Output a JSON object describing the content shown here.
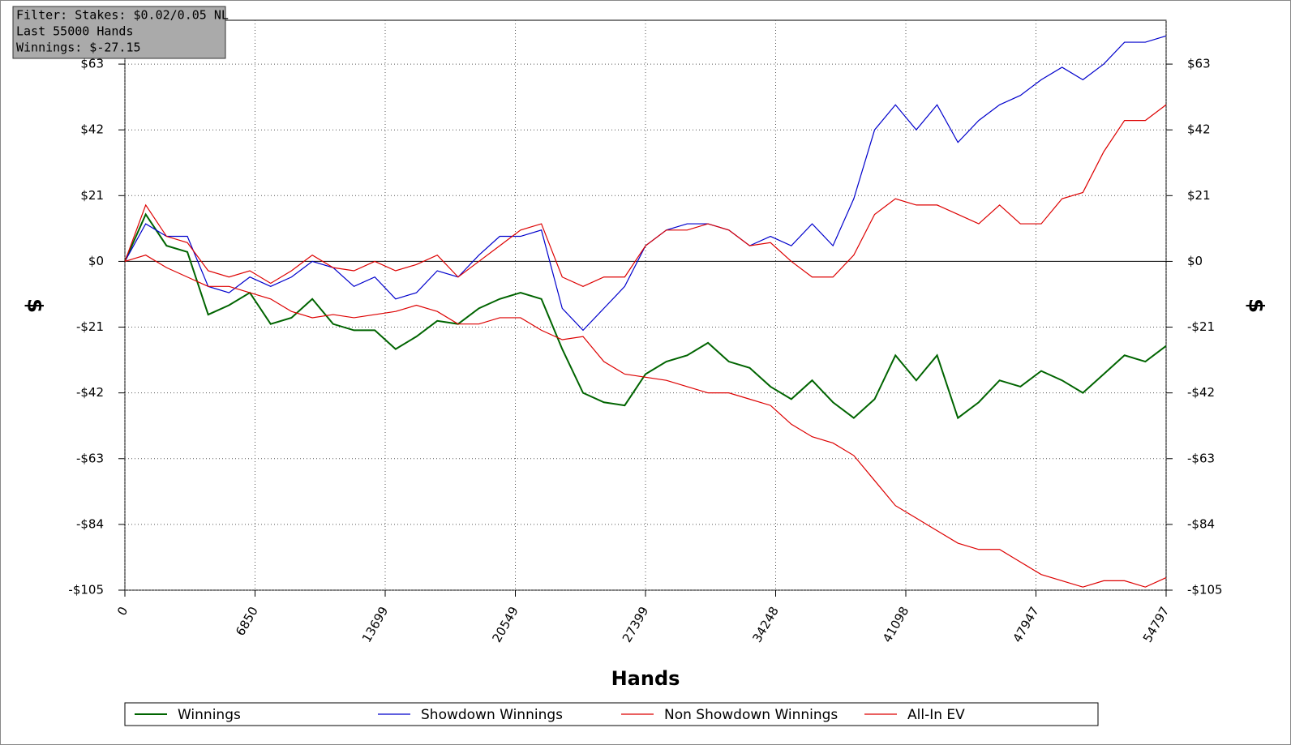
{
  "chart_data": {
    "type": "line",
    "info_box": [
      "Filter: Stakes: $0.02/0.05 NL",
      "Last  55000 Hands",
      "Winnings: $-27.15"
    ],
    "x_label": "Hands",
    "y_label": "$",
    "y2_label": "$",
    "x": [
      0,
      1096,
      2192,
      3288,
      4384,
      5480,
      6576,
      7672,
      8768,
      9864,
      10960,
      12056,
      13152,
      14248,
      15344,
      16440,
      17536,
      18632,
      19728,
      20824,
      21920,
      23016,
      24112,
      25208,
      26304,
      27400,
      28496,
      29592,
      30688,
      31784,
      32880,
      33976,
      35072,
      36168,
      37264,
      38360,
      39456,
      40552,
      41648,
      42744,
      43840,
      44936,
      46032,
      47128,
      48224,
      49320,
      50416,
      51512,
      52608,
      53704,
      54797
    ],
    "series": [
      {
        "name": "Winnings",
        "color": "#006400",
        "values": [
          0,
          15,
          5,
          3,
          -17,
          -14,
          -10,
          -20,
          -18,
          -12,
          -20,
          -22,
          -22,
          -28,
          -24,
          -19,
          -20,
          -15,
          -12,
          -10,
          -12,
          -28,
          -42,
          -45,
          -46,
          -36,
          -32,
          -30,
          -26,
          -32,
          -34,
          -40,
          -44,
          -38,
          -45,
          -50,
          -44,
          -30,
          -38,
          -30,
          -50,
          -45,
          -38,
          -40,
          -35,
          -38,
          -42,
          -36,
          -30,
          -32,
          -27
        ]
      },
      {
        "name": "Showdown Winnings",
        "color": "#0000cc",
        "values": [
          0,
          12,
          8,
          8,
          -8,
          -10,
          -5,
          -8,
          -5,
          0,
          -2,
          -8,
          -5,
          -12,
          -10,
          -3,
          -5,
          2,
          8,
          8,
          10,
          -15,
          -22,
          -15,
          -8,
          5,
          10,
          12,
          12,
          10,
          5,
          8,
          5,
          12,
          5,
          20,
          42,
          50,
          42,
          50,
          38,
          45,
          50,
          53,
          58,
          62,
          58,
          63,
          70,
          70,
          72
        ]
      },
      {
        "name": "Non Showdown Winnings",
        "color": "#dd0000",
        "values": [
          0,
          2,
          -2,
          -5,
          -8,
          -8,
          -10,
          -12,
          -16,
          -18,
          -17,
          -18,
          -17,
          -16,
          -14,
          -16,
          -20,
          -20,
          -18,
          -18,
          -22,
          -25,
          -24,
          -32,
          -36,
          -37,
          -38,
          -40,
          -42,
          -42,
          -44,
          -46,
          -52,
          -56,
          -58,
          -62,
          -70,
          -78,
          -82,
          -86,
          -90,
          -92,
          -92,
          -96,
          -100,
          -102,
          -104,
          -102,
          -102,
          -104,
          -101
        ]
      },
      {
        "name": "All-In EV",
        "color": "#dd0000",
        "values": [
          0,
          18,
          8,
          6,
          -3,
          -5,
          -3,
          -7,
          -3,
          2,
          -2,
          -3,
          0,
          -3,
          -1,
          2,
          -5,
          0,
          5,
          10,
          12,
          -5,
          -8,
          -5,
          -5,
          5,
          10,
          10,
          12,
          10,
          5,
          6,
          0,
          -5,
          -5,
          2,
          15,
          20,
          18,
          18,
          15,
          12,
          18,
          12,
          12,
          20,
          22,
          35,
          45,
          45,
          50
        ]
      }
    ],
    "xlim": [
      0,
      54797
    ],
    "xticks": [
      0,
      6850,
      13699,
      20549,
      27399,
      34248,
      41098,
      47947,
      54797
    ],
    "ylim": [
      -105,
      77
    ],
    "yticks": [
      {
        "value": -105,
        "label": "-$105"
      },
      {
        "value": -84,
        "label": "-$84"
      },
      {
        "value": -63,
        "label": "-$63"
      },
      {
        "value": -42,
        "label": "-$42"
      },
      {
        "value": -21,
        "label": "-$21"
      },
      {
        "value": 0,
        "label": "$0"
      },
      {
        "value": 21,
        "label": "$21"
      },
      {
        "value": 42,
        "label": "$42"
      },
      {
        "value": 63,
        "label": "$63"
      }
    ],
    "grid": true
  }
}
